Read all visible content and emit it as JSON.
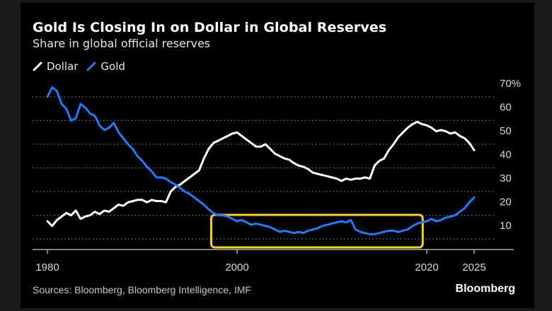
{
  "title": "Gold Is Closing In on Dollar in Global Reserves",
  "subtitle": "Share in global official reserves",
  "legend": [
    {
      "label": "Dollar",
      "color": "#ffffff"
    },
    {
      "label": "Gold",
      "color": "#1f7bff"
    }
  ],
  "footer": {
    "source": "Sources: Bloomberg, Bloomberg Intelligence, IMF",
    "brand": "Bloomberg"
  },
  "highlight_color": "#f5d327",
  "chart_data": {
    "type": "line",
    "title": "Gold Is Closing In on Dollar in Global Reserves",
    "subtitle": "Share in global official reserves",
    "xlabel": "",
    "ylabel": "",
    "xlim": [
      1980,
      2025
    ],
    "ylim": [
      0,
      70
    ],
    "x_ticks": [
      1980,
      2000,
      2020,
      2025
    ],
    "x_tick_labels": [
      "1980",
      "2000",
      "2020",
      "2025"
    ],
    "y_ticks": [
      10,
      20,
      30,
      40,
      50,
      60,
      70
    ],
    "y_tick_labels": [
      "10",
      "20",
      "30",
      "40",
      "50",
      "60",
      "70%"
    ],
    "grid": "horizontal-dotted",
    "legend_position": "top-left",
    "annotations": [
      {
        "type": "highlight-box",
        "x_range": [
          1997.5,
          2019.5
        ],
        "y_range": [
          0.5,
          15.5
        ],
        "color": "#f5d327"
      }
    ],
    "series": [
      {
        "name": "Dollar",
        "color": "#ffffff",
        "x": [
          1980,
          1980.5,
          1981,
          1981.5,
          1982,
          1982.5,
          1983,
          1983.5,
          1984,
          1984.5,
          1985,
          1985.5,
          1986,
          1986.5,
          1987,
          1987.5,
          1988,
          1988.5,
          1989,
          1989.5,
          1990,
          1990.5,
          1991,
          1991.5,
          1992,
          1992.5,
          1993,
          1993.5,
          1994,
          1994.5,
          1995,
          1995.5,
          1996,
          1996.5,
          1997,
          1997.5,
          1998,
          1998.5,
          1999,
          1999.5,
          2000,
          2000.5,
          2001,
          2001.5,
          2002,
          2002.5,
          2003,
          2003.5,
          2004,
          2004.5,
          2005,
          2005.5,
          2006,
          2006.5,
          2007,
          2007.5,
          2008,
          2008.5,
          2009,
          2009.5,
          2010,
          2010.5,
          2011,
          2011.5,
          2012,
          2012.5,
          2013,
          2013.5,
          2014,
          2014.5,
          2015,
          2015.5,
          2016,
          2016.5,
          2017,
          2017.5,
          2018,
          2018.5,
          2019,
          2019.5,
          2020,
          2020.5,
          2021,
          2021.5,
          2022,
          2022.5,
          2023,
          2023.5,
          2024,
          2024.5,
          2025
        ],
        "values": [
          11.5,
          9.5,
          12,
          13.5,
          15,
          14,
          16,
          12.5,
          13.5,
          14,
          15.5,
          14.5,
          16,
          15.5,
          17,
          18.5,
          18,
          19.5,
          20,
          20.5,
          20.5,
          19.5,
          20.5,
          20,
          20,
          19.5,
          24,
          26,
          27,
          28.5,
          30,
          31.5,
          33,
          38,
          42,
          44.5,
          45.5,
          46.5,
          47.5,
          48.5,
          49,
          47.5,
          46,
          44.5,
          43,
          43,
          44,
          42,
          40,
          39,
          38,
          37.5,
          36,
          35,
          34.5,
          33.5,
          32,
          31.5,
          31,
          30.5,
          30,
          29.5,
          28.5,
          29.5,
          29,
          29.5,
          29.5,
          30,
          29.5,
          35,
          37,
          38,
          41.5,
          44,
          47,
          49,
          51,
          52.5,
          53.5,
          52.5,
          52,
          51,
          49.5,
          50,
          49.5,
          48.5,
          49,
          47.5,
          46.5,
          44.5,
          41.5
        ]
      },
      {
        "name": "Gold",
        "color": "#1f7bff",
        "x": [
          1980,
          1980.5,
          1981,
          1981.5,
          1982,
          1982.5,
          1983,
          1983.5,
          1984,
          1984.5,
          1985,
          1985.5,
          1986,
          1986.5,
          1987,
          1987.5,
          1988,
          1988.5,
          1989,
          1989.5,
          1990,
          1990.5,
          1991,
          1991.5,
          1992,
          1992.5,
          1993,
          1993.5,
          1994,
          1994.5,
          1995,
          1995.5,
          1996,
          1996.5,
          1997,
          1997.5,
          1998,
          1998.5,
          1999,
          1999.5,
          2000,
          2000.5,
          2001,
          2001.5,
          2002,
          2002.5,
          2003,
          2003.5,
          2004,
          2004.5,
          2005,
          2005.5,
          2006,
          2006.5,
          2007,
          2007.5,
          2008,
          2008.5,
          2009,
          2009.5,
          2010,
          2010.5,
          2011,
          2011.5,
          2012,
          2012.5,
          2013,
          2013.5,
          2014,
          2014.5,
          2015,
          2015.5,
          2016,
          2016.5,
          2017,
          2017.5,
          2018,
          2018.5,
          2019,
          2019.5,
          2020,
          2020.5,
          2021,
          2021.5,
          2022,
          2022.5,
          2023,
          2023.5,
          2024,
          2024.5,
          2025
        ],
        "values": [
          64,
          68,
          66.5,
          61,
          59,
          54,
          55,
          61,
          59.5,
          57,
          56,
          52,
          50,
          51,
          53,
          49,
          46.5,
          44,
          42,
          39,
          37,
          34.5,
          32.5,
          30,
          30,
          29.5,
          28,
          27,
          25.5,
          24,
          23,
          21.5,
          20,
          18.5,
          16.5,
          15,
          14,
          14,
          13.5,
          12.5,
          11.5,
          12,
          11,
          10,
          10.5,
          10,
          9.5,
          9,
          8,
          7,
          7.5,
          7,
          6.5,
          7,
          6.5,
          7.5,
          8,
          8.5,
          9.5,
          10,
          10.5,
          11,
          11.5,
          11,
          12,
          8,
          7,
          6.5,
          6,
          6,
          6.5,
          7,
          7.5,
          7.5,
          7,
          7.5,
          8,
          9.5,
          10.5,
          11,
          11.5,
          12.5,
          11.5,
          12,
          13,
          13.5,
          14,
          15.5,
          17,
          19.5,
          21.5
        ]
      }
    ]
  }
}
